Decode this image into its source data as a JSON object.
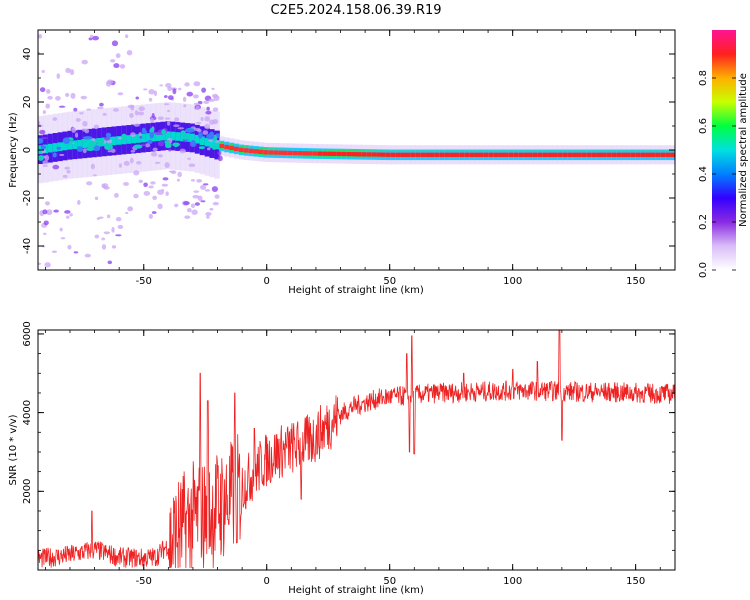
{
  "title": "C2E5.2024.158.06.39.R19",
  "chart_data": [
    {
      "type": "heatmap",
      "xlabel": "Height of straight line (km)",
      "ylabel": "Frequency (Hz)",
      "xlim": [
        -93,
        166
      ],
      "ylim": [
        -50,
        50
      ],
      "xticks": [
        -50,
        0,
        50,
        100,
        150
      ],
      "yticks": [
        -40,
        -20,
        0,
        20,
        40
      ],
      "colorbar": {
        "label": "Normalized spectral amplitude",
        "range": [
          0,
          1
        ],
        "ticks": [
          "0.0",
          "0.2",
          "0.4",
          "0.6",
          "0.8"
        ],
        "colors": [
          "#ffffff",
          "#d9bdf7",
          "#8a2be2",
          "#3300ff",
          "#0080ff",
          "#00e0e0",
          "#00ff40",
          "#c8ff00",
          "#ffb000",
          "#ff2020",
          "#ff1493"
        ]
      },
      "signal_center_hz": [
        [
          -93,
          0
        ],
        [
          -80,
          2
        ],
        [
          -70,
          3
        ],
        [
          -60,
          4
        ],
        [
          -50,
          5
        ],
        [
          -40,
          6
        ],
        [
          -30,
          5
        ],
        [
          -20,
          2
        ],
        [
          -10,
          0
        ],
        [
          0,
          -1
        ],
        [
          20,
          -1.5
        ],
        [
          50,
          -2
        ],
        [
          100,
          -2
        ],
        [
          166,
          -2
        ]
      ],
      "grid": false
    },
    {
      "type": "line",
      "xlabel": "Height of straight line (km)",
      "ylabel": "SNR (10 * v/v)",
      "xlim": [
        -93,
        166
      ],
      "ylim": [
        0,
        6100
      ],
      "xticks": [
        -50,
        0,
        50,
        100,
        150
      ],
      "yticks": [
        2000,
        4000,
        6000
      ],
      "series": [
        {
          "color": "#ee2222",
          "trend": [
            [
              -93,
              280
            ],
            [
              -80,
              380
            ],
            [
              -70,
              520
            ],
            [
              -60,
              320
            ],
            [
              -50,
              300
            ],
            [
              -45,
              330
            ],
            [
              -40,
              650
            ],
            [
              -35,
              1000
            ],
            [
              -30,
              1300
            ],
            [
              -25,
              1400
            ],
            [
              -20,
              1600
            ],
            [
              -15,
              1800
            ],
            [
              -10,
              2100
            ],
            [
              -5,
              2500
            ],
            [
              0,
              2800
            ],
            [
              5,
              3000
            ],
            [
              10,
              3100
            ],
            [
              15,
              3200
            ],
            [
              20,
              3400
            ],
            [
              25,
              3700
            ],
            [
              30,
              3950
            ],
            [
              35,
              4150
            ],
            [
              40,
              4250
            ],
            [
              45,
              4350
            ],
            [
              50,
              4400
            ],
            [
              55,
              4420
            ],
            [
              60,
              4450
            ],
            [
              70,
              4500
            ],
            [
              80,
              4520
            ],
            [
              90,
              4540
            ],
            [
              100,
              4560
            ],
            [
              110,
              4560
            ],
            [
              120,
              4540
            ],
            [
              130,
              4520
            ],
            [
              140,
              4520
            ],
            [
              150,
              4500
            ],
            [
              160,
              4480
            ],
            [
              166,
              4470
            ]
          ],
          "spikes": [
            [
              -71,
              1500
            ],
            [
              -27,
              5000
            ],
            [
              -24,
              4300
            ],
            [
              -23,
              600
            ],
            [
              -13,
              4500
            ],
            [
              -12,
              700
            ],
            [
              -5,
              3600
            ],
            [
              14,
              1800
            ],
            [
              57,
              5500
            ],
            [
              58,
              3000
            ],
            [
              59,
              5950
            ],
            [
              60,
              2950
            ],
            [
              80,
              5000
            ],
            [
              100,
              5100
            ],
            [
              110,
              5300
            ],
            [
              119,
              6100
            ],
            [
              120,
              3300
            ]
          ]
        }
      ],
      "grid": false
    }
  ]
}
